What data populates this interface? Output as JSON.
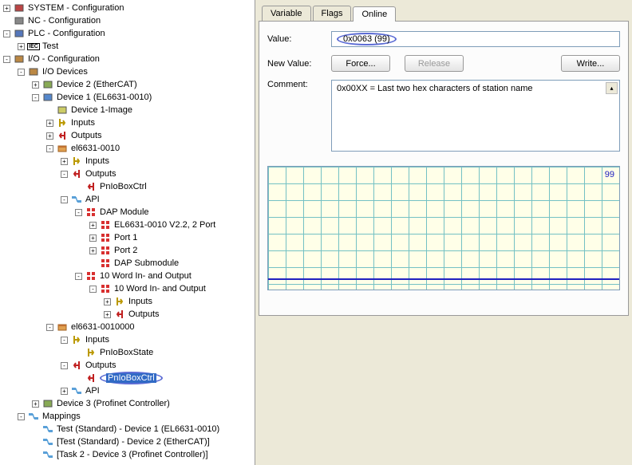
{
  "tree": [
    {
      "d": 0,
      "exp": "+",
      "icon": "sys",
      "label": "SYSTEM - Configuration"
    },
    {
      "d": 0,
      "exp": " ",
      "icon": "nc",
      "label": "NC - Configuration"
    },
    {
      "d": 0,
      "exp": "-",
      "icon": "plc",
      "label": "PLC - Configuration"
    },
    {
      "d": 1,
      "exp": "+",
      "icon": "iec",
      "label": "Test"
    },
    {
      "d": 0,
      "exp": "-",
      "icon": "io",
      "label": "I/O - Configuration"
    },
    {
      "d": 1,
      "exp": "-",
      "icon": "iod",
      "label": "I/O Devices"
    },
    {
      "d": 2,
      "exp": "+",
      "icon": "dev",
      "label": "Device 2 (EtherCAT)"
    },
    {
      "d": 2,
      "exp": "-",
      "icon": "dev2",
      "label": "Device 1 (EL6631-0010)"
    },
    {
      "d": 3,
      "exp": " ",
      "icon": "img",
      "label": "Device 1-Image"
    },
    {
      "d": 3,
      "exp": "+",
      "icon": "in",
      "label": "Inputs"
    },
    {
      "d": 3,
      "exp": "+",
      "icon": "out",
      "label": "Outputs"
    },
    {
      "d": 3,
      "exp": "-",
      "icon": "box",
      "label": "el6631-0010"
    },
    {
      "d": 4,
      "exp": "+",
      "icon": "in",
      "label": "Inputs"
    },
    {
      "d": 4,
      "exp": "-",
      "icon": "out",
      "label": "Outputs"
    },
    {
      "d": 5,
      "exp": " ",
      "icon": "outv",
      "label": "PnIoBoxCtrl"
    },
    {
      "d": 4,
      "exp": "-",
      "icon": "api",
      "label": "API"
    },
    {
      "d": 5,
      "exp": "-",
      "icon": "mod",
      "label": "DAP Module"
    },
    {
      "d": 6,
      "exp": "+",
      "icon": "smod",
      "label": "EL6631-0010 V2.2, 2 Port"
    },
    {
      "d": 6,
      "exp": "+",
      "icon": "smod",
      "label": "Port 1"
    },
    {
      "d": 6,
      "exp": "+",
      "icon": "smod",
      "label": "Port 2"
    },
    {
      "d": 6,
      "exp": " ",
      "icon": "smod",
      "label": "DAP Submodule"
    },
    {
      "d": 5,
      "exp": "-",
      "icon": "mod",
      "label": "10 Word In- and Output"
    },
    {
      "d": 6,
      "exp": "-",
      "icon": "smod",
      "label": "10 Word In- and Output"
    },
    {
      "d": 7,
      "exp": "+",
      "icon": "in",
      "label": "Inputs"
    },
    {
      "d": 7,
      "exp": "+",
      "icon": "out",
      "label": "Outputs"
    },
    {
      "d": 3,
      "exp": "-",
      "icon": "box",
      "label": "el6631-0010000"
    },
    {
      "d": 4,
      "exp": "-",
      "icon": "in",
      "label": "Inputs"
    },
    {
      "d": 5,
      "exp": " ",
      "icon": "inv",
      "label": "PnIoBoxState"
    },
    {
      "d": 4,
      "exp": "-",
      "icon": "out",
      "label": "Outputs"
    },
    {
      "d": 5,
      "exp": " ",
      "icon": "outv",
      "label": "PnIoBoxCtrl",
      "selected": true,
      "oval": true
    },
    {
      "d": 4,
      "exp": "+",
      "icon": "api",
      "label": "API"
    },
    {
      "d": 2,
      "exp": "+",
      "icon": "dev",
      "label": "Device 3 (Profinet Controller)"
    },
    {
      "d": 1,
      "exp": "-",
      "icon": "map",
      "label": "Mappings"
    },
    {
      "d": 2,
      "exp": " ",
      "icon": "mapi",
      "label": "Test (Standard) - Device 1 (EL6631-0010)"
    },
    {
      "d": 2,
      "exp": " ",
      "icon": "mapi",
      "label": "[Test (Standard) - Device 2 (EtherCAT)]"
    },
    {
      "d": 2,
      "exp": " ",
      "icon": "mapi",
      "label": "[Task 2 - Device 3 (Profinet Controller)]"
    }
  ],
  "tabs": {
    "items": [
      "Variable",
      "Flags",
      "Online"
    ],
    "active": 2
  },
  "panel": {
    "value_label": "Value:",
    "value": "0x0063 (99)",
    "newvalue_label": "New Value:",
    "force_btn": "Force...",
    "release_btn": "Release",
    "write_btn": "Write...",
    "comment_label": "Comment:",
    "comment": "0x00XX = Last two hex characters of station name",
    "chart_val": "99"
  },
  "icons": {
    "sys": "#b44",
    "nc": "#888",
    "plc": "#57b",
    "iec": "#222",
    "io": "#b84",
    "iod": "#b84",
    "dev": "#8a5",
    "dev2": "#58c",
    "img": "#cc6",
    "in": "#cc4",
    "out": "#c44",
    "inv": "#cc4",
    "outv": "#c44",
    "box": "#d66",
    "api": "#49c",
    "mod": "#d33",
    "smod": "#d33",
    "map": "#49c",
    "mapi": "#49c"
  }
}
